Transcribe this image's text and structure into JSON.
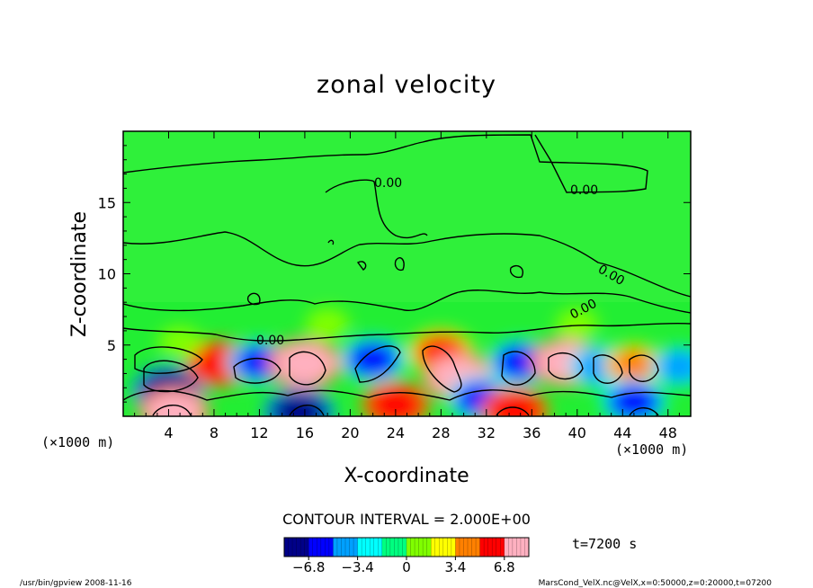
{
  "chart_data": {
    "type": "heatmap",
    "title": "zonal velocity",
    "xlabel": "X-coordinate",
    "ylabel": "Z-coordinate",
    "x_unit": "(×1000 m)",
    "x_unit_right": "(×1000 m)",
    "xlim": [
      0,
      50
    ],
    "ylim": [
      0,
      20
    ],
    "x_ticks": [
      "4",
      "8",
      "12",
      "16",
      "20",
      "24",
      "28",
      "32",
      "36",
      "40",
      "44",
      "48"
    ],
    "y_ticks": [
      "5",
      "10",
      "15"
    ],
    "contour_interval": "CONTOUR INTERVAL = 2.000E+00",
    "contour_labels": [
      "0.00",
      "0.00",
      "0.00",
      "0.00",
      "0.00"
    ],
    "colorbar": {
      "range": [
        -8.5,
        8.5
      ],
      "ticks": [
        "−6.8",
        "−3.4",
        "0",
        "3.4",
        "6.8"
      ],
      "colors": [
        "#000088",
        "#0000ff",
        "#00a0ff",
        "#00ffff",
        "#00ff80",
        "#80ff00",
        "#ffff00",
        "#ff8000",
        "#ff0000",
        "#ffb0c0"
      ]
    },
    "time_label": "t=7200 s",
    "cells": [
      {
        "x": 4,
        "z": 1.8,
        "u": -7.5
      },
      {
        "x": 4.5,
        "z": 0.3,
        "u": 7.0
      },
      {
        "x": 8.5,
        "z": 3.7,
        "u": 6.5
      },
      {
        "x": 12,
        "z": 3.8,
        "u": -5.5
      },
      {
        "x": 16,
        "z": 3.7,
        "u": 7.5
      },
      {
        "x": 15.5,
        "z": 0.3,
        "u": -7.0
      },
      {
        "x": 22,
        "z": 4.0,
        "u": -6.0
      },
      {
        "x": 24,
        "z": 0.8,
        "u": 6.5
      },
      {
        "x": 28,
        "z": 4.5,
        "u": 6.0
      },
      {
        "x": 29.5,
        "z": 2.8,
        "u": 7.0
      },
      {
        "x": 31.5,
        "z": 1.2,
        "u": -6.0
      },
      {
        "x": 35,
        "z": 3.8,
        "u": -6.0
      },
      {
        "x": 34.5,
        "z": 0.4,
        "u": 6.5
      },
      {
        "x": 39,
        "z": 3.8,
        "u": 7.0
      },
      {
        "x": 42,
        "z": 3.5,
        "u": -5.0
      },
      {
        "x": 45,
        "z": 3.6,
        "u": 4.5
      },
      {
        "x": 45,
        "z": 1.0,
        "u": -6.0
      },
      {
        "x": 49,
        "z": 3.5,
        "u": -4.0
      },
      {
        "x": 5,
        "z": 5.2,
        "u": 1.5
      },
      {
        "x": 18,
        "z": 6.5,
        "u": 1.5
      },
      {
        "x": 40,
        "z": 6.5,
        "u": 1.2
      }
    ]
  },
  "footer": {
    "left": "/usr/bin/gpview   2008-11-16",
    "right": "MarsCond_VelX.nc@VelX,x=0:50000,z=0:20000,t=07200"
  }
}
